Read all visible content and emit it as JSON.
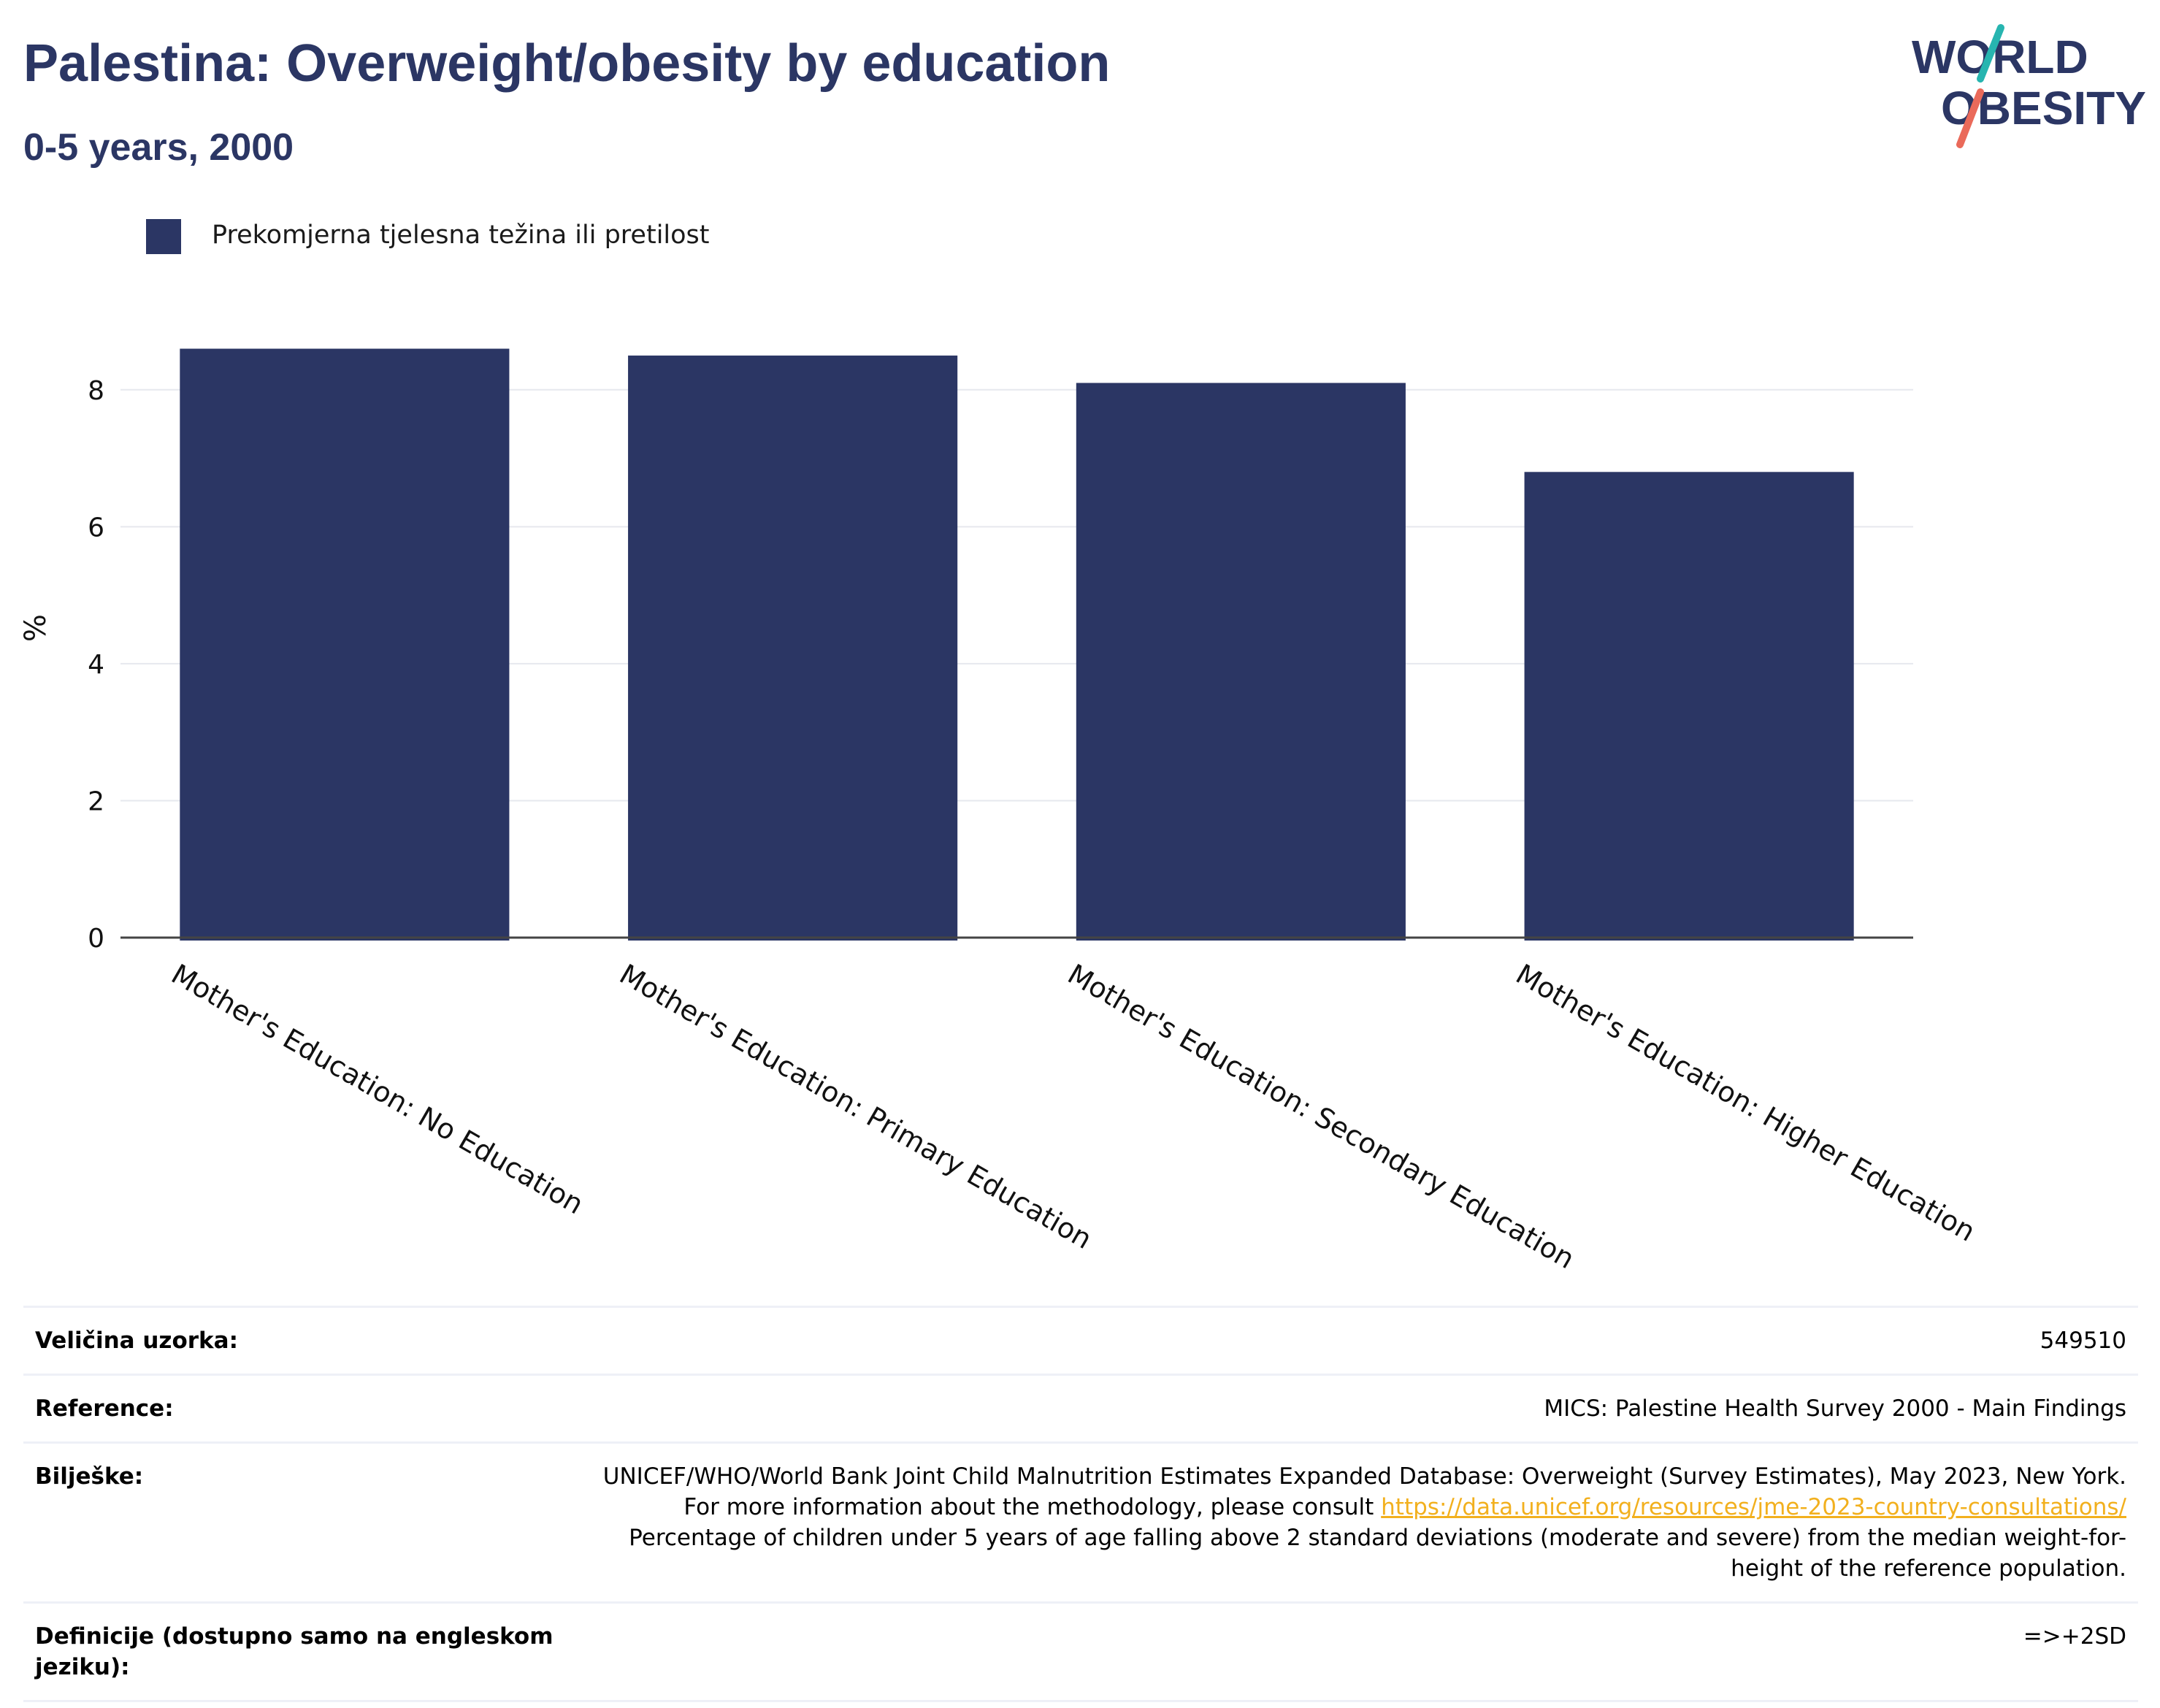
{
  "title": "Palestina: Overweight/obesity by education",
  "subtitle": "0-5 years, 2000",
  "logo": {
    "line1": "WORLD",
    "line2": "OBESITY"
  },
  "legend": {
    "label": "Prekomjerna tjelesna težina ili pretilost",
    "color": "#2b3664"
  },
  "chart_data": {
    "type": "bar",
    "categories": [
      "Mother's Education: No Education",
      "Mother's Education: Primary Education",
      "Mother's Education: Secondary Education",
      "Mother's Education: Higher Education"
    ],
    "series": [
      {
        "name": "Prekomjerna tjelesna težina ili pretilost",
        "values": [
          8.6,
          8.5,
          8.1,
          6.8
        ],
        "color": "#2b3664"
      }
    ],
    "ylabel": "%",
    "xlabel": "",
    "ylim": [
      0,
      9
    ],
    "yticks": [
      0,
      2,
      4,
      6,
      8
    ],
    "grid": true,
    "legend_position": "top-left"
  },
  "info": {
    "sample_label": "Veličina uzorka:",
    "sample_value": "549510",
    "reference_label": "Reference:",
    "reference_value": "MICS: Palestine Health Survey 2000 - Main Findings",
    "notes_label": "Bilješke:",
    "notes_text_1": "UNICEF/WHO/World Bank Joint Child Malnutrition Estimates Expanded Database: Overweight (Survey Estimates), May 2023, New York. For more information about the methodology, please consult ",
    "notes_link": "https://data.unicef.org/resources/jme-2023-country-consultations/",
    "notes_text_2": "Percentage of children under 5 years of age falling above 2 standard deviations (moderate and severe) from the median weight-for-height of the reference population.",
    "definitions_label": "Definicije (dostupno samo na engleskom jeziku):",
    "definitions_value": "=>+2SD"
  }
}
